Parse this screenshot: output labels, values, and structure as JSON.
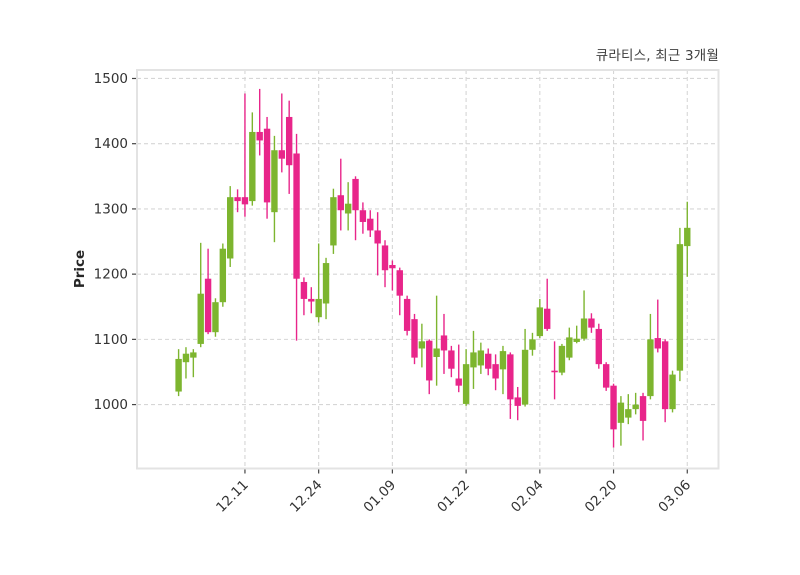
{
  "title": "큐라티스, 최근 3개월",
  "chart_data": {
    "type": "candlestick",
    "title": "큐라티스, 최근 3개월",
    "series_name": "큐라티스",
    "period": "최근 3개월",
    "xlabel": "",
    "ylabel": "Price",
    "grid": true,
    "legend": false,
    "ylim": [
      902,
      1513
    ],
    "y_ticks": [
      1000,
      1100,
      1200,
      1300,
      1400,
      1500
    ],
    "x_tick_labels": [
      "12.11",
      "12.24",
      "01.09",
      "01.22",
      "02.04",
      "02.20",
      "03.06"
    ],
    "x_tick_candle_indices": [
      9,
      19,
      29,
      39,
      49,
      59,
      69
    ],
    "up_color": "#7db52f",
    "down_color": "#e8258a",
    "grid_color": "#d6d6d6",
    "spine_color": "#e3e3e3",
    "tick_label_color": "#333333",
    "candles_ohlc": [
      [
        1020,
        1085,
        1013,
        1070
      ],
      [
        1065,
        1088,
        1040,
        1078
      ],
      [
        1072,
        1085,
        1042,
        1080
      ],
      [
        1093,
        1248,
        1088,
        1170
      ],
      [
        1193,
        1239,
        1108,
        1111
      ],
      [
        1111,
        1163,
        1104,
        1157
      ],
      [
        1157,
        1247,
        1150,
        1239
      ],
      [
        1224,
        1335,
        1211,
        1318
      ],
      [
        1318,
        1330,
        1295,
        1312
      ],
      [
        1318,
        1477,
        1288,
        1307
      ],
      [
        1312,
        1448,
        1305,
        1418
      ],
      [
        1418,
        1484,
        1382,
        1405
      ],
      [
        1423,
        1441,
        1285,
        1310
      ],
      [
        1295,
        1412,
        1249,
        1390
      ],
      [
        1390,
        1477,
        1356,
        1377
      ],
      [
        1441,
        1466,
        1323,
        1367
      ],
      [
        1385,
        1415,
        1098,
        1193
      ],
      [
        1188,
        1195,
        1137,
        1162
      ],
      [
        1162,
        1180,
        1140,
        1158
      ],
      [
        1134,
        1247,
        1126,
        1162
      ],
      [
        1155,
        1225,
        1131,
        1217
      ],
      [
        1244,
        1331,
        1231,
        1318
      ],
      [
        1321,
        1377,
        1267,
        1298
      ],
      [
        1293,
        1341,
        1267,
        1308
      ],
      [
        1346,
        1350,
        1252,
        1298
      ],
      [
        1298,
        1310,
        1262,
        1280
      ],
      [
        1285,
        1298,
        1257,
        1267
      ],
      [
        1267,
        1295,
        1198,
        1247
      ],
      [
        1244,
        1252,
        1180,
        1206
      ],
      [
        1214,
        1221,
        1175,
        1209
      ],
      [
        1206,
        1210,
        1137,
        1167
      ],
      [
        1162,
        1167,
        1106,
        1113
      ],
      [
        1131,
        1139,
        1062,
        1072
      ],
      [
        1086,
        1124,
        1057,
        1097
      ],
      [
        1098,
        1100,
        1016,
        1037
      ],
      [
        1073,
        1167,
        1029,
        1086
      ],
      [
        1106,
        1139,
        1047,
        1083
      ],
      [
        1083,
        1090,
        1042,
        1055
      ],
      [
        1040,
        1092,
        1019,
        1029
      ],
      [
        1001,
        1085,
        998,
        1062
      ],
      [
        1057,
        1113,
        1024,
        1080
      ],
      [
        1060,
        1095,
        1047,
        1083
      ],
      [
        1078,
        1086,
        1045,
        1055
      ],
      [
        1062,
        1077,
        1022,
        1040
      ],
      [
        1054,
        1090,
        1016,
        1082
      ],
      [
        1077,
        1080,
        978,
        1008
      ],
      [
        1011,
        1027,
        976,
        998
      ],
      [
        1000,
        1116,
        997,
        1084
      ],
      [
        1084,
        1110,
        1075,
        1100
      ],
      [
        1105,
        1162,
        1102,
        1149
      ],
      [
        1147,
        1193,
        1113,
        1116
      ],
      [
        1052,
        1097,
        1008,
        1051
      ],
      [
        1049,
        1093,
        1045,
        1090
      ],
      [
        1072,
        1118,
        1068,
        1103
      ],
      [
        1096,
        1121,
        1094,
        1101
      ],
      [
        1101,
        1175,
        1098,
        1132
      ],
      [
        1132,
        1140,
        1110,
        1118
      ],
      [
        1116,
        1124,
        1055,
        1062
      ],
      [
        1062,
        1065,
        1021,
        1026
      ],
      [
        1029,
        1032,
        934,
        962
      ],
      [
        972,
        1013,
        937,
        1003
      ],
      [
        980,
        1016,
        970,
        993
      ],
      [
        993,
        1018,
        985,
        1000
      ],
      [
        1013,
        1018,
        945,
        975
      ],
      [
        1013,
        1139,
        1008,
        1100
      ],
      [
        1102,
        1161,
        1080,
        1086
      ],
      [
        1097,
        1100,
        973,
        993
      ],
      [
        993,
        1052,
        988,
        1046
      ],
      [
        1052,
        1271,
        1036,
        1246
      ],
      [
        1243,
        1311,
        1196,
        1271
      ]
    ]
  }
}
